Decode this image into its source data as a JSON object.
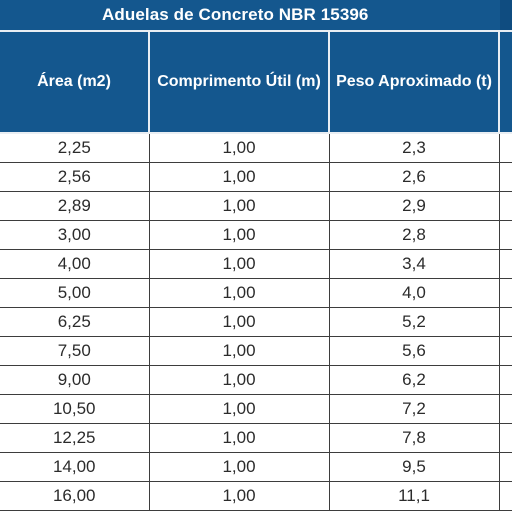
{
  "title": "Aduelas de Concreto NBR 15396",
  "colors": {
    "header_background": "#14578e",
    "header_text": "#ffffff",
    "cell_text": "#2b2b2b",
    "grid_lines": "#3d3d3d"
  },
  "table": {
    "headers": [
      "Área (m2)",
      "Comprimento Útil (m)",
      "Peso Aproximado (t)",
      ""
    ],
    "rows": [
      [
        "2,25",
        "1,00",
        "2,3"
      ],
      [
        "2,56",
        "1,00",
        "2,6"
      ],
      [
        "2,89",
        "1,00",
        "2,9"
      ],
      [
        "3,00",
        "1,00",
        "2,8"
      ],
      [
        "4,00",
        "1,00",
        "3,4"
      ],
      [
        "5,00",
        "1,00",
        "4,0"
      ],
      [
        "6,25",
        "1,00",
        "5,2"
      ],
      [
        "7,50",
        "1,00",
        "5,6"
      ],
      [
        "9,00",
        "1,00",
        "6,2"
      ],
      [
        "10,50",
        "1,00",
        "7,2"
      ],
      [
        "12,25",
        "1,00",
        "7,8"
      ],
      [
        "14,00",
        "1,00",
        "9,5"
      ],
      [
        "16,00",
        "1,00",
        "11,1"
      ]
    ]
  }
}
